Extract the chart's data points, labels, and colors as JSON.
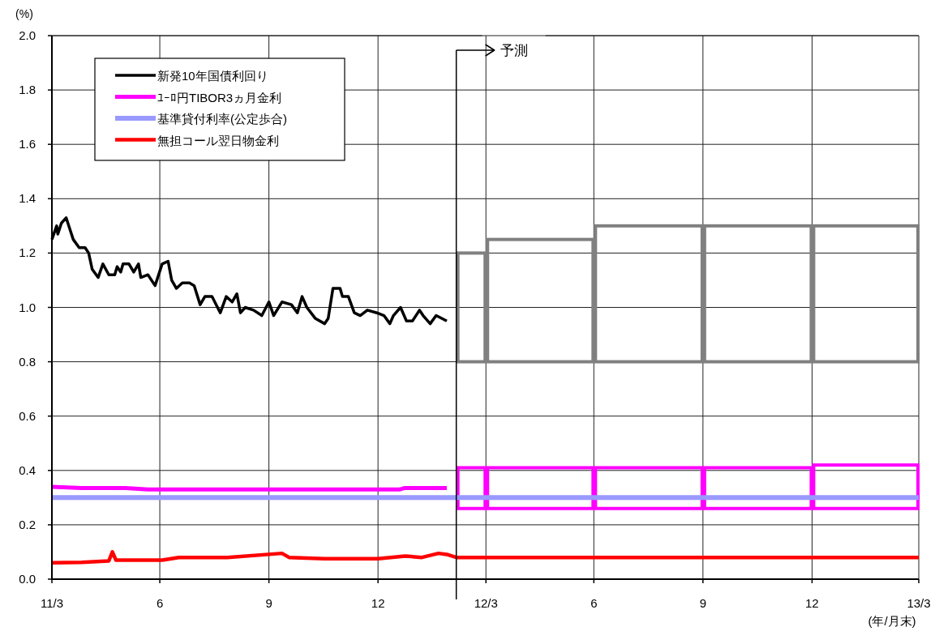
{
  "chart_data": {
    "type": "line",
    "xlabel": "(年/月末)",
    "ylabel": "(%)",
    "xlim": [
      "2011-03-31",
      "2013-03-31"
    ],
    "xticks": [
      {
        "value": "2011-03-31",
        "label": "11/3"
      },
      {
        "value": "2011-06-30",
        "label": "6"
      },
      {
        "value": "2011-09-30",
        "label": "9"
      },
      {
        "value": "2011-12-31",
        "label": "12"
      },
      {
        "value": "2012-03-31",
        "label": "12/3"
      },
      {
        "value": "2012-06-30",
        "label": "6"
      },
      {
        "value": "2012-09-30",
        "label": "9"
      },
      {
        "value": "2012-12-31",
        "label": "12"
      },
      {
        "value": "2013-03-31",
        "label": "13/3"
      }
    ],
    "ylim": [
      0,
      2
    ],
    "yticks": [
      {
        "value": 0,
        "label": "0.0"
      },
      0.2,
      0.4,
      0.6,
      0.8,
      {
        "value": 1,
        "label": "1.0"
      },
      1.2,
      1.4,
      1.6,
      1.8,
      {
        "value": 2,
        "label": "2.0"
      }
    ],
    "grid": true,
    "legend": "top left",
    "ref_lines": [
      {
        "axis": "x",
        "value": "2012-03-06",
        "label": "予測"
      }
    ],
    "series": [
      {
        "name": "新発10年国債利回り",
        "color": "#000000",
        "x": [
          "2011-03-31",
          "2011-04-04",
          "2011-04-05",
          "2011-04-08",
          "2011-04-12",
          "2011-04-15",
          "2011-04-18",
          "2011-04-23",
          "2011-04-28",
          "2011-05-01",
          "2011-05-04",
          "2011-05-09",
          "2011-05-13",
          "2011-05-18",
          "2011-05-23",
          "2011-05-25",
          "2011-05-28",
          "2011-05-30",
          "2011-06-04",
          "2011-06-08",
          "2011-06-12",
          "2011-06-14",
          "2011-06-20",
          "2011-06-26",
          "2011-07-02",
          "2011-07-07",
          "2011-07-10",
          "2011-07-14",
          "2011-07-19",
          "2011-07-25",
          "2011-07-29",
          "2011-08-03",
          "2011-08-07",
          "2011-08-13",
          "2011-08-20",
          "2011-08-25",
          "2011-08-30",
          "2011-09-03",
          "2011-09-06",
          "2011-09-10",
          "2011-09-17",
          "2011-09-24",
          "2011-09-30",
          "2011-10-04",
          "2011-10-11",
          "2011-10-19",
          "2011-10-24",
          "2011-10-28",
          "2011-11-01",
          "2011-11-08",
          "2011-11-16",
          "2011-11-19",
          "2011-11-23",
          "2011-11-29",
          "2011-12-01",
          "2011-12-06",
          "2011-12-11",
          "2011-12-16",
          "2011-12-22",
          "2011-12-30",
          "2012-01-05",
          "2012-01-10",
          "2012-01-13",
          "2012-01-19",
          "2012-01-24",
          "2012-01-29",
          "2012-02-04",
          "2012-02-07",
          "2012-02-13",
          "2012-02-18",
          "2012-02-27"
        ],
        "values": [
          1.25,
          1.3,
          1.27,
          1.31,
          1.33,
          1.29,
          1.25,
          1.22,
          1.22,
          1.2,
          1.14,
          1.11,
          1.16,
          1.12,
          1.12,
          1.15,
          1.13,
          1.16,
          1.16,
          1.13,
          1.16,
          1.11,
          1.12,
          1.08,
          1.16,
          1.17,
          1.1,
          1.07,
          1.09,
          1.09,
          1.08,
          1.01,
          1.04,
          1.04,
          0.98,
          1.04,
          1.02,
          1.05,
          0.98,
          1.0,
          0.99,
          0.97,
          1.02,
          0.97,
          1.02,
          1.01,
          0.98,
          1.04,
          1.0,
          0.96,
          0.94,
          0.96,
          1.07,
          1.07,
          1.04,
          1.04,
          0.98,
          0.97,
          0.99,
          0.98,
          0.97,
          0.94,
          0.97,
          1.0,
          0.95,
          0.95,
          0.99,
          0.97,
          0.94,
          0.97,
          0.95
        ]
      },
      {
        "name": "ﾕｰﾛ円TIBOR3ヵ月金利",
        "color": "#ff00ff",
        "x": [
          "2011-03-31",
          "2011-04-25",
          "2011-06-01",
          "2011-06-20",
          "2012-01-18",
          "2012-01-22",
          "2012-02-27"
        ],
        "values": [
          0.34,
          0.335,
          0.335,
          0.33,
          0.33,
          0.335,
          0.335
        ]
      },
      {
        "name": "基準貸付利率(公定歩合)",
        "color": "#9999ff",
        "x": [
          "2011-03-31",
          "2013-03-31"
        ],
        "values": [
          0.3,
          0.3
        ]
      },
      {
        "name": "無担コール翌日物金利",
        "color": "#ff0000",
        "x": [
          "2011-03-31",
          "2011-04-25",
          "2011-05-18",
          "2011-05-21",
          "2011-05-24",
          "2011-07-02",
          "2011-07-16",
          "2011-08-26",
          "2011-10-11",
          "2011-10-17",
          "2011-11-16",
          "2011-12-31",
          "2012-01-23",
          "2012-02-06",
          "2012-02-20",
          "2012-02-28",
          "2012-03-06",
          "2013-03-31"
        ],
        "values": [
          0.06,
          0.062,
          0.067,
          0.1,
          0.07,
          0.07,
          0.08,
          0.08,
          0.095,
          0.08,
          0.075,
          0.075,
          0.085,
          0.08,
          0.095,
          0.09,
          0.08,
          0.08
        ]
      },
      {
        "color": "#808080",
        "type": "bar",
        "x": [
          "2012-03-31",
          "2012-06-30",
          "2012-09-30",
          "2012-12-31",
          "2013-03-31"
        ],
        "base": [
          0.8,
          0.8,
          0.8,
          0.8,
          0.8
        ],
        "values": [
          0.4,
          0.45,
          0.5,
          0.5,
          0.5
        ]
      },
      {
        "color": "#ff00ff",
        "type": "bar",
        "x": [
          "2012-03-31",
          "2012-06-30",
          "2012-09-30",
          "2012-12-31",
          "2013-03-31"
        ],
        "base": [
          0.26,
          0.26,
          0.26,
          0.26,
          0.26
        ],
        "values": [
          0.15,
          0.15,
          0.15,
          0.15,
          0.16
        ]
      }
    ]
  }
}
